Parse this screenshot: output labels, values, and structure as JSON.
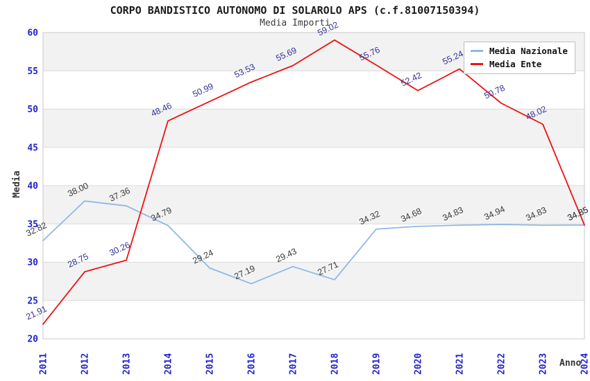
{
  "title": "CORPO BANDISTICO AUTONOMO DI SOLAROLO APS (c.f.81007150394)",
  "subtitle": "Media Importi",
  "legend": {
    "items": [
      {
        "label": "Media Nazionale",
        "color": "#8FB8E8"
      },
      {
        "label": "Media Ente",
        "color": "#EE1111"
      }
    ]
  },
  "axes": {
    "y_label": "Media",
    "x_label": "Anno",
    "y_ticks": [
      20,
      25,
      30,
      35,
      40,
      45,
      50,
      55,
      60
    ],
    "tick_color": "#2222CC"
  },
  "colors": {
    "band": "#F2F2F2",
    "plot_bg": "#FFFFFF",
    "grid": "#DBDBDB",
    "border": "#C8C8C8"
  },
  "chart_data": {
    "type": "line",
    "title": "Media Importi",
    "xlabel": "Anno",
    "ylabel": "Media",
    "ylim": [
      20,
      60
    ],
    "grid": "horizontal-bands",
    "legend_position": "top-right",
    "x": [
      "2011",
      "2012",
      "2013",
      "2014",
      "2015",
      "2016",
      "2017",
      "2018",
      "2019",
      "2020",
      "2021",
      "2022",
      "2023",
      "2024"
    ],
    "series": [
      {
        "name": "Media Nazionale",
        "color": "#8FB8E8",
        "label_color": "#3A3A3A",
        "values": [
          32.82,
          38.0,
          37.36,
          34.79,
          29.24,
          27.19,
          29.43,
          27.71,
          34.32,
          34.68,
          34.83,
          34.94,
          34.83,
          34.85
        ]
      },
      {
        "name": "Media Ente",
        "color": "#EE1111",
        "label_color": "#333399",
        "values": [
          21.91,
          28.75,
          30.26,
          48.46,
          50.99,
          53.53,
          55.69,
          59.02,
          55.76,
          52.42,
          55.24,
          50.78,
          48.02,
          34.85
        ]
      }
    ]
  }
}
